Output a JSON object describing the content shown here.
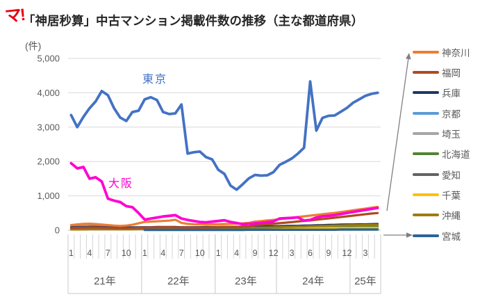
{
  "logo": {
    "text": "マ!"
  },
  "title": "「神居秒算」中古マンション掲載件数の推移（主な都道府県）",
  "chart_data": {
    "type": "line",
    "title": "「神居秒算」中古マンション掲載件数の推移（主な都道府県）",
    "unit_label": "(件)",
    "ylim": [
      0,
      5000
    ],
    "ytick_labels": [
      "0",
      "1,000",
      "2,000",
      "3,000",
      "4,000",
      "5,000"
    ],
    "grid": true,
    "legend_position": "right",
    "grid_color": "#D9D9D9",
    "axis_color": "#BFBFBF",
    "tick_color": "#D4D4D4",
    "divider_color": "#C8C8C8",
    "arrow_color": "#7F7F7F",
    "axis_text_color": "#595959",
    "year_groups": [
      {
        "label": "21年",
        "points": 12
      },
      {
        "label": "22年",
        "points": 12
      },
      {
        "label": "23年",
        "points": 10
      },
      {
        "label": "24年",
        "points": 12
      },
      {
        "label": "25年",
        "points": 5
      }
    ],
    "month_tick_labels": [
      "1",
      "",
      "",
      "4",
      "",
      "",
      "7",
      "",
      "",
      "10",
      "",
      "",
      "1",
      "",
      "",
      "4",
      "",
      "",
      "7",
      "",
      "",
      "10",
      "",
      "",
      "1",
      "",
      "",
      "4",
      "",
      "",
      "9",
      "",
      "",
      "12",
      "",
      "",
      "3",
      "",
      "",
      "6",
      "",
      "",
      "9",
      "",
      "",
      "12",
      "",
      "",
      "3",
      "",
      ""
    ],
    "inline_labels": [
      {
        "text": "東京",
        "color": "#4472C4"
      },
      {
        "text": "大阪",
        "color": "#FF00D0"
      }
    ],
    "legend": [
      {
        "name": "神奈川",
        "color": "#ED7D31"
      },
      {
        "name": "福岡",
        "color": "#AE4A21"
      },
      {
        "name": "兵庫",
        "color": "#1F3864"
      },
      {
        "name": "京都",
        "color": "#5B9BD5"
      },
      {
        "name": "埼玉",
        "color": "#A6A6A6"
      },
      {
        "name": "北海道",
        "color": "#548235"
      },
      {
        "name": "愛知",
        "color": "#636363"
      },
      {
        "name": "千葉",
        "color": "#FFC000"
      },
      {
        "name": "沖縄",
        "color": "#9E7C0F"
      },
      {
        "name": "宮城",
        "color": "#2A6597"
      }
    ],
    "series": [
      {
        "name": "埼玉",
        "color": "#A6A6A6",
        "width": 3,
        "values": [
          110,
          115,
          120,
          115,
          110,
          105,
          100,
          95,
          90,
          85,
          80,
          80,
          80,
          75,
          75,
          70,
          70,
          70,
          65,
          65,
          65,
          65,
          65,
          65,
          65,
          65,
          65,
          65,
          65,
          65,
          70,
          70,
          70,
          70,
          70,
          70,
          75,
          75,
          75,
          80,
          80,
          80,
          85,
          85,
          85,
          85,
          85,
          85,
          85,
          85,
          85
        ]
      },
      {
        "name": "愛知",
        "color": "#636363",
        "width": 3,
        "values": [
          85,
          85,
          90,
          90,
          85,
          85,
          80,
          80,
          75,
          70,
          70,
          70,
          70,
          65,
          65,
          65,
          65,
          60,
          60,
          60,
          60,
          60,
          60,
          60,
          60,
          60,
          60,
          60,
          60,
          60,
          65,
          65,
          65,
          65,
          65,
          65,
          70,
          70,
          70,
          70,
          70,
          75,
          75,
          75,
          75,
          75,
          75,
          75,
          80,
          80,
          80
        ]
      },
      {
        "name": "京都",
        "color": "#5B9BD5",
        "width": 3,
        "values": [
          95,
          105,
          115,
          130,
          135,
          130,
          115,
          100,
          90,
          85,
          80,
          80,
          80,
          80,
          75,
          75,
          75,
          70,
          70,
          70,
          70,
          70,
          70,
          70,
          70,
          70,
          70,
          70,
          70,
          75,
          75,
          80,
          80,
          80,
          85,
          85,
          90,
          90,
          95,
          95,
          100,
          100,
          105,
          105,
          110,
          110,
          110,
          115,
          115,
          120,
          120
        ]
      },
      {
        "name": "兵庫",
        "color": "#1F3864",
        "width": 3,
        "values": [
          85,
          90,
          90,
          95,
          95,
          90,
          85,
          80,
          80,
          80,
          85,
          85,
          90,
          90,
          95,
          95,
          95,
          95,
          90,
          90,
          90,
          90,
          95,
          95,
          95,
          100,
          100,
          100,
          105,
          105,
          110,
          115,
          115,
          120,
          120,
          125,
          130,
          130,
          135,
          140,
          145,
          150,
          155,
          160,
          165,
          170,
          170,
          175,
          175,
          180,
          185
        ]
      },
      {
        "name": "北海道",
        "color": "#548235",
        "width": 3,
        "values": [
          45,
          45,
          50,
          50,
          50,
          50,
          45,
          45,
          45,
          45,
          45,
          50,
          50,
          50,
          55,
          55,
          55,
          55,
          55,
          55,
          55,
          55,
          60,
          60,
          60,
          60,
          60,
          60,
          65,
          65,
          65,
          70,
          70,
          70,
          75,
          75,
          80,
          80,
          80,
          85,
          85,
          90,
          90,
          90,
          95,
          95,
          95,
          100,
          100,
          100,
          100
        ]
      },
      {
        "name": "千葉",
        "color": "#FFC000",
        "width": 3,
        "values": [
          35,
          35,
          40,
          40,
          40,
          40,
          35,
          35,
          35,
          35,
          35,
          35,
          35,
          35,
          40,
          40,
          40,
          40,
          40,
          40,
          40,
          40,
          45,
          45,
          45,
          45,
          45,
          45,
          45,
          50,
          50,
          50,
          50,
          55,
          55,
          55,
          55,
          60,
          60,
          60,
          60,
          60,
          65,
          65,
          65,
          65,
          65,
          70,
          70,
          70,
          70
        ]
      },
      {
        "name": "沖縄",
        "color": "#9E7C0F",
        "width": 3,
        "values": [
          20,
          20,
          20,
          25,
          25,
          25,
          25,
          25,
          25,
          25,
          25,
          30,
          30,
          30,
          30,
          35,
          35,
          35,
          40,
          40,
          40,
          45,
          45,
          50,
          50,
          55,
          55,
          60,
          60,
          65,
          70,
          75,
          80,
          85,
          90,
          95,
          100,
          105,
          110,
          115,
          120,
          125,
          130,
          135,
          140,
          145,
          150,
          150,
          155,
          155,
          160
        ]
      },
      {
        "name": "宮城",
        "color": "#2A6597",
        "width": 3.4,
        "values": [
          null,
          null,
          null,
          null,
          null,
          null,
          null,
          null,
          null,
          null,
          null,
          null,
          10,
          10,
          10,
          10,
          10,
          10,
          10,
          10,
          10,
          10,
          10,
          10,
          10,
          10,
          10,
          10,
          10,
          15,
          15,
          15,
          15,
          15,
          15,
          15,
          15,
          15,
          15,
          15,
          15,
          15,
          15,
          15,
          20,
          20,
          20,
          20,
          20,
          20,
          20
        ]
      },
      {
        "name": "福岡",
        "color": "#AE4A21",
        "width": 3.2,
        "values": [
          65,
          70,
          75,
          80,
          80,
          75,
          70,
          65,
          60,
          60,
          65,
          70,
          75,
          80,
          85,
          90,
          90,
          85,
          80,
          80,
          75,
          75,
          80,
          85,
          90,
          95,
          100,
          100,
          105,
          110,
          145,
          160,
          175,
          190,
          205,
          220,
          235,
          255,
          270,
          285,
          305,
          325,
          345,
          365,
          385,
          405,
          425,
          445,
          465,
          485,
          500
        ]
      },
      {
        "name": "神奈川",
        "color": "#ED7D31",
        "width": 3.2,
        "values": [
          150,
          170,
          185,
          190,
          180,
          165,
          150,
          135,
          125,
          135,
          160,
          200,
          240,
          250,
          260,
          270,
          280,
          305,
          215,
          185,
          175,
          170,
          170,
          175,
          175,
          180,
          185,
          190,
          200,
          215,
          250,
          265,
          285,
          300,
          320,
          340,
          360,
          385,
          405,
          425,
          445,
          465,
          485,
          505,
          530,
          555,
          580,
          605,
          630,
          655,
          680
        ]
      },
      {
        "name": "大阪",
        "color": "#FF00D0",
        "width": 3.8,
        "values": [
          1950,
          1800,
          1840,
          1500,
          1540,
          1420,
          920,
          860,
          820,
          700,
          670,
          500,
          310,
          340,
          370,
          400,
          420,
          440,
          340,
          300,
          270,
          240,
          230,
          250,
          270,
          290,
          240,
          210,
          175,
          185,
          200,
          215,
          235,
          260,
          340,
          350,
          360,
          375,
          280,
          300,
          370,
          405,
          420,
          440,
          470,
          505,
          530,
          560,
          590,
          620,
          650
        ]
      },
      {
        "name": "東京",
        "color": "#4472C4",
        "width": 3.8,
        "values": [
          3350,
          3000,
          3300,
          3550,
          3750,
          4050,
          3930,
          3550,
          3280,
          3180,
          3440,
          3480,
          3810,
          3870,
          3790,
          3440,
          3380,
          3400,
          3660,
          2230,
          2270,
          2290,
          2130,
          2060,
          1760,
          1640,
          1300,
          1180,
          1340,
          1510,
          1610,
          1590,
          1600,
          1690,
          1900,
          1990,
          2090,
          2230,
          2400,
          4330,
          2900,
          3270,
          3330,
          3340,
          3450,
          3560,
          3710,
          3810,
          3910,
          3970,
          4000
        ]
      }
    ]
  }
}
